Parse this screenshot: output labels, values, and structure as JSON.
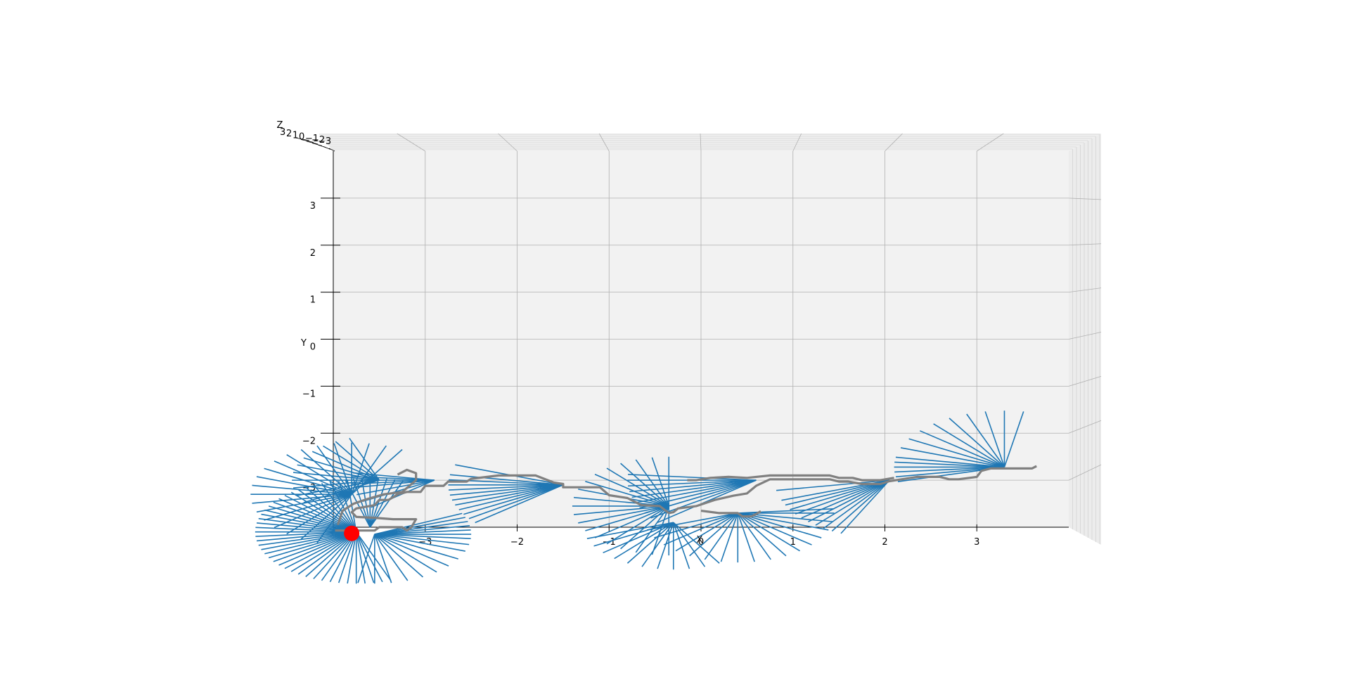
{
  "chart_data": {
    "type": "line",
    "projection": "3d",
    "view": "looking down the z axis (top view)",
    "xlabel": "X",
    "ylabel": "Y",
    "zlabel": "Z",
    "xlim": [
      -4,
      4
    ],
    "ylim": [
      -4,
      4
    ],
    "x_ticks": [
      "−3",
      "−2",
      "−1",
      "0",
      "1",
      "2",
      "3"
    ],
    "x_tick_values": [
      -3,
      -2,
      -1,
      0,
      1,
      2,
      3
    ],
    "y_ticks": [
      "−3",
      "−2",
      "−1",
      "0",
      "1",
      "2",
      "3"
    ],
    "y_tick_values": [
      -3,
      -2,
      -1,
      0,
      1,
      2,
      3
    ],
    "z_ticks": [
      "3",
      "2",
      "1",
      "0",
      "−1",
      "−2",
      "−3"
    ],
    "grid": true,
    "colors": {
      "ray": "#1f77b4",
      "path": "#808080",
      "marker": "#ff0000",
      "pane": "#f2f2f2",
      "grid": "#b0b0b0"
    },
    "series": [
      {
        "kind": "path",
        "points": [
          [
            -3.98,
            -4.07
          ],
          [
            -3.55,
            -4.07
          ],
          [
            -3.5,
            -4.0
          ],
          [
            -3.25,
            -4.0
          ],
          [
            -3.2,
            -4.07
          ],
          [
            -3.15,
            -4.0
          ],
          [
            -3.1,
            -3.83
          ],
          [
            -3.35,
            -3.83
          ],
          [
            -3.55,
            -3.8
          ],
          [
            -3.75,
            -3.78
          ],
          [
            -3.8,
            -3.68
          ],
          [
            -3.75,
            -3.6
          ],
          [
            -3.55,
            -3.53
          ],
          [
            -3.5,
            -3.42
          ],
          [
            -3.4,
            -3.42
          ],
          [
            -3.3,
            -3.3
          ],
          [
            -3.2,
            -3.25
          ],
          [
            -3.05,
            -3.25
          ],
          [
            -3.0,
            -3.12
          ],
          [
            -2.8,
            -3.12
          ],
          [
            -2.75,
            -3.03
          ],
          [
            -2.55,
            -3.03
          ],
          [
            -2.5,
            -2.97
          ],
          [
            -2.2,
            -2.9
          ],
          [
            -1.9,
            -2.9
          ],
          [
            -1.8,
            -2.9
          ],
          [
            -1.6,
            -3.05
          ],
          [
            -1.5,
            -3.08
          ],
          [
            -1.5,
            -3.15
          ],
          [
            -1.3,
            -3.15
          ],
          [
            -1.1,
            -3.15
          ],
          [
            -1.0,
            -3.32
          ],
          [
            -0.8,
            -3.38
          ],
          [
            -0.65,
            -3.53
          ],
          [
            -0.45,
            -3.55
          ],
          [
            -0.35,
            -3.7
          ],
          [
            -0.3,
            -3.68
          ],
          [
            -0.25,
            -3.6
          ],
          [
            -0.05,
            -3.55
          ],
          [
            0.15,
            -3.42
          ],
          [
            0.35,
            -3.33
          ],
          [
            0.5,
            -3.28
          ],
          [
            0.6,
            -3.12
          ],
          [
            0.75,
            -2.98
          ],
          [
            1.4,
            -2.98
          ],
          [
            1.5,
            -3.03
          ],
          [
            1.6,
            -3.03
          ],
          [
            1.75,
            -3.08
          ],
          [
            1.95,
            -3.08
          ],
          [
            2.05,
            -3.02
          ],
          [
            2.35,
            -2.93
          ],
          [
            2.6,
            -2.93
          ],
          [
            2.7,
            -2.98
          ],
          [
            2.8,
            -2.98
          ],
          [
            3.0,
            -2.93
          ],
          [
            3.05,
            -2.8
          ],
          [
            3.15,
            -2.75
          ],
          [
            3.6,
            -2.75
          ],
          [
            3.65,
            -2.7
          ]
        ]
      },
      {
        "kind": "path",
        "points": [
          [
            -3.95,
            -3.95
          ],
          [
            -3.9,
            -3.65
          ],
          [
            -3.78,
            -3.5
          ],
          [
            -3.63,
            -3.4
          ],
          [
            -3.45,
            -3.3
          ],
          [
            -3.25,
            -3.25
          ],
          [
            -3.1,
            -3.0
          ],
          [
            -3.1,
            -2.85
          ],
          [
            -3.2,
            -2.78
          ],
          [
            -3.3,
            -2.88
          ]
        ]
      },
      {
        "kind": "path",
        "points": [
          [
            -0.15,
            -3.0
          ],
          [
            -0.05,
            -3.0
          ],
          [
            0.1,
            -2.95
          ],
          [
            0.3,
            -2.93
          ],
          [
            0.5,
            -2.95
          ],
          [
            0.75,
            -2.9
          ],
          [
            1.4,
            -2.9
          ],
          [
            1.5,
            -2.95
          ],
          [
            1.65,
            -2.95
          ],
          [
            1.75,
            -3.0
          ],
          [
            1.95,
            -3.0
          ],
          [
            2.1,
            -2.95
          ]
        ]
      },
      {
        "kind": "path",
        "points": [
          [
            0.0,
            -3.65
          ],
          [
            0.2,
            -3.7
          ],
          [
            0.4,
            -3.7
          ],
          [
            0.45,
            -3.77
          ],
          [
            0.55,
            -3.77
          ],
          [
            0.6,
            -3.72
          ],
          [
            0.65,
            -3.66
          ]
        ]
      },
      {
        "kind": "rays",
        "origin": [
          -3.75,
          -4.1
        ],
        "angles": [
          95,
          100,
          105,
          110,
          115,
          120,
          125,
          130,
          135,
          140,
          145,
          150,
          155,
          160,
          165,
          170,
          175,
          180,
          185,
          190,
          195,
          200,
          205,
          210,
          215,
          220,
          225,
          230,
          235,
          240,
          245,
          250,
          255,
          260,
          265,
          270,
          275,
          280,
          285,
          290
        ],
        "length": 1.1
      },
      {
        "kind": "rays",
        "origin": [
          -3.8,
          -3.3
        ],
        "angles": [
          60,
          70,
          80,
          90,
          100,
          110,
          120,
          130,
          140,
          150,
          160,
          170,
          180,
          190,
          200,
          210,
          220,
          230,
          240,
          250
        ],
        "length": 1.1
      },
      {
        "kind": "rays",
        "origin": [
          -3.55,
          -4.15
        ],
        "angles": [
          -100,
          -90,
          -80,
          -70,
          -60,
          -50,
          -40,
          -30,
          -20,
          -12,
          -5,
          0,
          5,
          10,
          15,
          20,
          25
        ],
        "length": 1.05
      },
      {
        "kind": "rays",
        "origin": [
          -3.5,
          -3.0
        ],
        "angles": [
          110,
          120,
          130,
          140,
          150,
          160,
          170,
          180,
          190,
          200,
          210
        ],
        "length": 0.95
      },
      {
        "kind": "rays",
        "origin": [
          -3.6,
          -4.0
        ],
        "angles": [
          70,
          75,
          80,
          85,
          90,
          95,
          100,
          105
        ],
        "length": 1.05
      },
      {
        "kind": "rays",
        "origin": [
          -1.5,
          -3.1
        ],
        "angles": [
          175,
          180,
          185,
          190,
          195,
          200,
          205,
          210,
          215,
          220,
          160,
          170
        ],
        "length": 1.25
      },
      {
        "kind": "rays",
        "origin": [
          -2.9,
          -3.0
        ],
        "angles": [
          170,
          175,
          180,
          185,
          190,
          200,
          210,
          220
        ],
        "length": 0.9
      },
      {
        "kind": "rays",
        "origin": [
          -0.35,
          -3.55
        ],
        "angles": [
          90,
          100,
          110,
          120,
          130,
          140,
          150,
          160,
          170,
          180,
          190,
          200,
          210,
          220,
          230,
          240,
          250,
          260,
          270
        ],
        "length": 1.05
      },
      {
        "kind": "rays",
        "origin": [
          0.4,
          -3.7
        ],
        "angles": [
          200,
          210,
          220,
          230,
          240,
          250,
          260,
          270,
          280,
          290,
          300,
          310,
          320,
          330,
          340,
          350,
          0,
          5
        ],
        "length": 1.05
      },
      {
        "kind": "rays",
        "origin": [
          -0.3,
          -3.9
        ],
        "angles": [
          200,
          210,
          220,
          230,
          240,
          250,
          260,
          270,
          280,
          290,
          300
        ],
        "length": 1.0
      },
      {
        "kind": "rays",
        "origin": [
          0.6,
          -3.0
        ],
        "angles": [
          175,
          180,
          185,
          190,
          195,
          200,
          205,
          210,
          215,
          220
        ],
        "length": 1.4
      },
      {
        "kind": "rays",
        "origin": [
          2.05,
          -3.0
        ],
        "angles": [
          190,
          200,
          205,
          210,
          215,
          220,
          225,
          230,
          235,
          240,
          245
        ],
        "length": 1.25
      },
      {
        "kind": "rays",
        "origin": [
          3.3,
          -2.72
        ],
        "angles": [
          80,
          90,
          100,
          110,
          120,
          130,
          140,
          150,
          160,
          170,
          175,
          180,
          185,
          190,
          195
        ],
        "length": 1.2
      },
      {
        "kind": "marker",
        "point": [
          -3.8,
          -4.13
        ]
      }
    ]
  }
}
